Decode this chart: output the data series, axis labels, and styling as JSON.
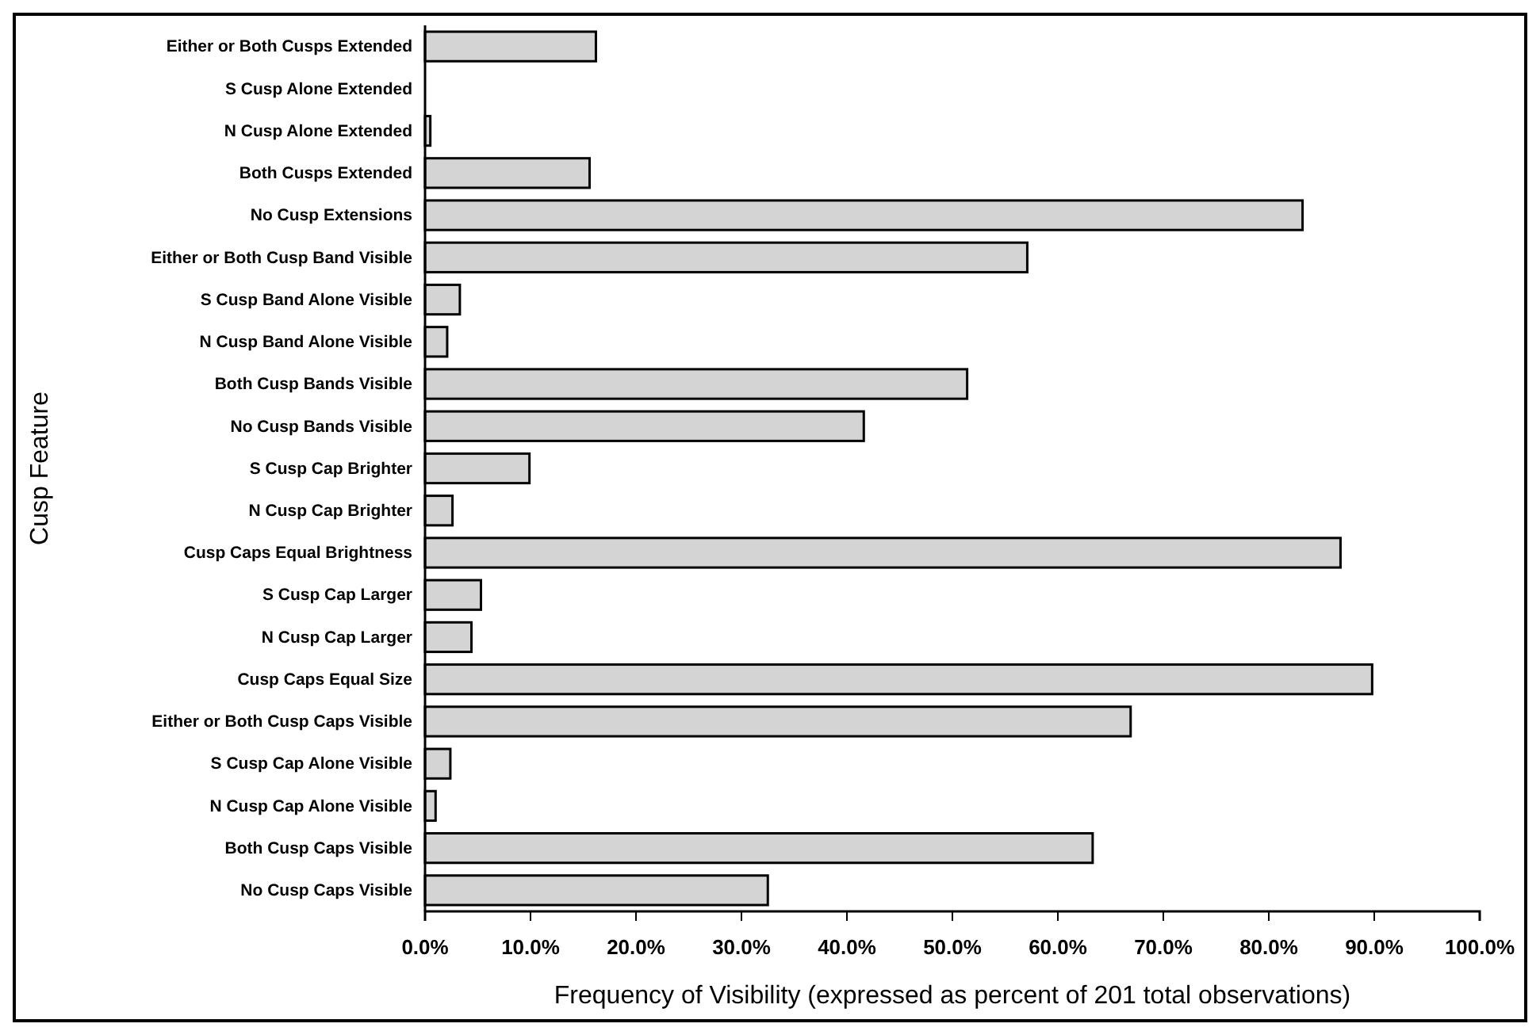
{
  "chart_data": {
    "type": "bar",
    "orientation": "horizontal",
    "xlabel": "Frequency of Visibility (expressed as percent of 201 total observations)",
    "ylabel": "Cusp Feature",
    "categories": [
      "Either or Both Cusps Extended",
      "S Cusp Alone Extended",
      "N Cusp Alone Extended",
      "Both Cusps Extended",
      "No Cusp Extensions",
      "Either or Both Cusp Band Visible",
      "S Cusp Band Alone Visible",
      "N Cusp Band Alone Visible",
      "Both Cusp Bands Visible",
      "No Cusp Bands Visible",
      "S Cusp Cap Brighter",
      "N Cusp Cap Brighter",
      "Cusp Caps Equal Brightness",
      "S Cusp Cap Larger",
      "N Cusp Cap Larger",
      "Cusp Caps Equal Size",
      "Either or Both Cusp Caps Visible",
      "S Cusp Cap Alone Visible",
      "N Cusp Cap Alone Visible",
      "Both Cusp Caps Visible",
      "No Cusp Caps Visible"
    ],
    "values": [
      16.2,
      0,
      0.5,
      15.6,
      83.2,
      57.1,
      3.3,
      2.1,
      51.4,
      41.6,
      9.9,
      2.6,
      86.8,
      5.3,
      4.4,
      89.8,
      66.9,
      2.4,
      1.0,
      63.3,
      32.5
    ],
    "color": "#d4d4d4",
    "xlim": [
      0,
      100
    ],
    "xticks": [
      {
        "value": 0,
        "label": "0.0%"
      },
      {
        "value": 10,
        "label": "10.0%"
      },
      {
        "value": 20,
        "label": "20.0%"
      },
      {
        "value": 30,
        "label": "30.0%"
      },
      {
        "value": 40,
        "label": "40.0%"
      },
      {
        "value": 50,
        "label": "50.0%"
      },
      {
        "value": 60,
        "label": "60.0%"
      },
      {
        "value": 70,
        "label": "70.0%"
      },
      {
        "value": 80,
        "label": "80.0%"
      },
      {
        "value": 90,
        "label": "90.0%"
      },
      {
        "value": 100,
        "label": "100.0%"
      }
    ],
    "grid": false
  }
}
